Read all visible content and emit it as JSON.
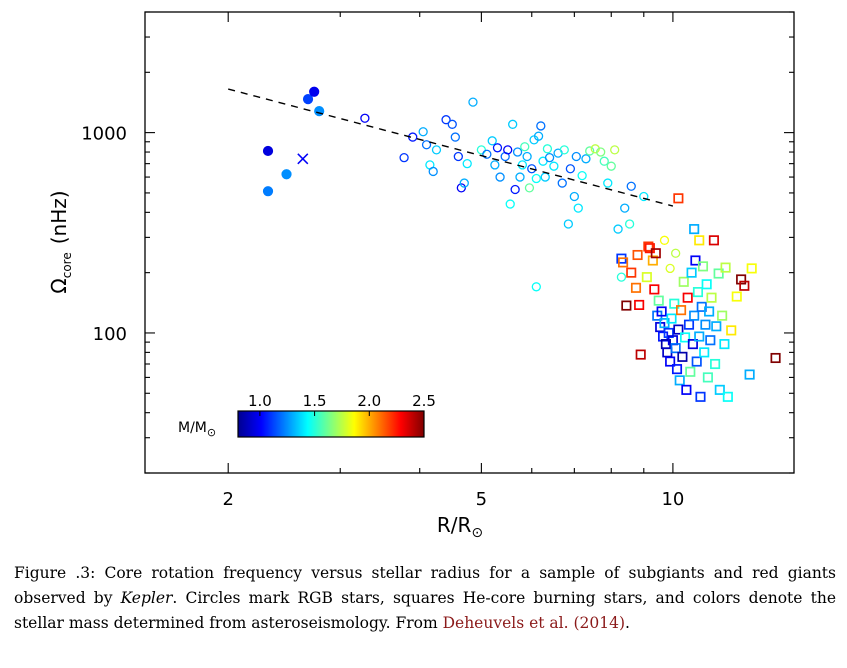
{
  "chart_data": {
    "type": "scatter",
    "title": "",
    "xlabel": "R/R",
    "xlabel_sub": "⊙",
    "ylabel": "Ω",
    "ylabel_sub": "core",
    "ylabel_unit": "(nHz)",
    "xscale": "log",
    "yscale": "log",
    "xlim": [
      1.48,
      15.5
    ],
    "ylim": [
      20,
      4000
    ],
    "xticks": [
      2,
      5,
      10
    ],
    "yticks": [
      100,
      1000
    ],
    "colorbar": {
      "label": "M/M",
      "label_sub": "⊙",
      "range": [
        0.8,
        2.5
      ],
      "ticks": [
        "1.0",
        "1.5",
        "2.0",
        "2.5"
      ],
      "tick_values": [
        1.0,
        1.5,
        2.0,
        2.5
      ],
      "placement": "bottom-left",
      "colormap": [
        "#00008f",
        "#0000ff",
        "#0080ff",
        "#00ffff",
        "#80ff80",
        "#ffff00",
        "#ff8000",
        "#ff0000",
        "#800000"
      ]
    },
    "trend_line": {
      "style": "dashed",
      "x": [
        2.0,
        10.0
      ],
      "y": [
        1650,
        430
      ]
    },
    "series": [
      {
        "marker": "filled-circle",
        "points": [
          {
            "x": 2.31,
            "y": 810,
            "m": 0.95
          },
          {
            "x": 2.31,
            "y": 510,
            "m": 1.22
          },
          {
            "x": 2.47,
            "y": 620,
            "m": 1.25
          },
          {
            "x": 2.67,
            "y": 1470,
            "m": 1.12
          },
          {
            "x": 2.73,
            "y": 1600,
            "m": 0.98
          },
          {
            "x": 2.78,
            "y": 1280,
            "m": 1.25
          }
        ]
      },
      {
        "marker": "cross",
        "points": [
          {
            "x": 2.62,
            "y": 740,
            "m": 1.0
          }
        ]
      },
      {
        "marker": "open-circle",
        "points": [
          {
            "x": 3.28,
            "y": 1180,
            "m": 1.0
          },
          {
            "x": 3.78,
            "y": 750,
            "m": 1.1
          },
          {
            "x": 3.9,
            "y": 950,
            "m": 1.05
          },
          {
            "x": 4.05,
            "y": 1010,
            "m": 1.3
          },
          {
            "x": 4.1,
            "y": 870,
            "m": 1.2
          },
          {
            "x": 4.15,
            "y": 690,
            "m": 1.4
          },
          {
            "x": 4.2,
            "y": 640,
            "m": 1.25
          },
          {
            "x": 4.25,
            "y": 820,
            "m": 1.35
          },
          {
            "x": 4.4,
            "y": 1160,
            "m": 1.1
          },
          {
            "x": 4.5,
            "y": 1100,
            "m": 1.15
          },
          {
            "x": 4.55,
            "y": 950,
            "m": 1.2
          },
          {
            "x": 4.6,
            "y": 760,
            "m": 1.1
          },
          {
            "x": 4.65,
            "y": 530,
            "m": 1.0
          },
          {
            "x": 4.7,
            "y": 560,
            "m": 1.3
          },
          {
            "x": 4.75,
            "y": 700,
            "m": 1.4
          },
          {
            "x": 4.85,
            "y": 1420,
            "m": 1.3
          },
          {
            "x": 5.0,
            "y": 820,
            "m": 1.5
          },
          {
            "x": 5.1,
            "y": 780,
            "m": 1.2
          },
          {
            "x": 5.2,
            "y": 910,
            "m": 1.35
          },
          {
            "x": 5.25,
            "y": 690,
            "m": 1.3
          },
          {
            "x": 5.3,
            "y": 840,
            "m": 1.05
          },
          {
            "x": 5.35,
            "y": 600,
            "m": 1.25
          },
          {
            "x": 5.45,
            "y": 760,
            "m": 1.2
          },
          {
            "x": 5.5,
            "y": 820,
            "m": 1.0
          },
          {
            "x": 5.55,
            "y": 440,
            "m": 1.45
          },
          {
            "x": 5.6,
            "y": 1100,
            "m": 1.35
          },
          {
            "x": 5.65,
            "y": 520,
            "m": 1.05
          },
          {
            "x": 5.7,
            "y": 800,
            "m": 1.25
          },
          {
            "x": 5.75,
            "y": 600,
            "m": 1.3
          },
          {
            "x": 5.8,
            "y": 690,
            "m": 1.4
          },
          {
            "x": 5.85,
            "y": 850,
            "m": 1.55
          },
          {
            "x": 5.9,
            "y": 760,
            "m": 1.3
          },
          {
            "x": 5.95,
            "y": 530,
            "m": 1.6
          },
          {
            "x": 6.0,
            "y": 660,
            "m": 1.15
          },
          {
            "x": 6.05,
            "y": 920,
            "m": 1.35
          },
          {
            "x": 6.1,
            "y": 590,
            "m": 1.45
          },
          {
            "x": 6.1,
            "y": 170,
            "m": 1.45
          },
          {
            "x": 6.15,
            "y": 960,
            "m": 1.3
          },
          {
            "x": 6.2,
            "y": 1080,
            "m": 1.2
          },
          {
            "x": 6.25,
            "y": 720,
            "m": 1.4
          },
          {
            "x": 6.3,
            "y": 600,
            "m": 1.35
          },
          {
            "x": 6.35,
            "y": 830,
            "m": 1.5
          },
          {
            "x": 6.4,
            "y": 750,
            "m": 1.25
          },
          {
            "x": 6.5,
            "y": 680,
            "m": 1.4
          },
          {
            "x": 6.6,
            "y": 790,
            "m": 1.3
          },
          {
            "x": 6.7,
            "y": 560,
            "m": 1.2
          },
          {
            "x": 6.75,
            "y": 820,
            "m": 1.5
          },
          {
            "x": 6.85,
            "y": 350,
            "m": 1.35
          },
          {
            "x": 6.9,
            "y": 660,
            "m": 1.15
          },
          {
            "x": 7.0,
            "y": 480,
            "m": 1.3
          },
          {
            "x": 7.05,
            "y": 760,
            "m": 1.25
          },
          {
            "x": 7.1,
            "y": 420,
            "m": 1.4
          },
          {
            "x": 7.2,
            "y": 610,
            "m": 1.45
          },
          {
            "x": 7.3,
            "y": 740,
            "m": 1.3
          },
          {
            "x": 7.4,
            "y": 810,
            "m": 1.6
          },
          {
            "x": 7.55,
            "y": 830,
            "m": 1.75
          },
          {
            "x": 7.7,
            "y": 800,
            "m": 1.65
          },
          {
            "x": 7.8,
            "y": 720,
            "m": 1.55
          },
          {
            "x": 7.9,
            "y": 560,
            "m": 1.4
          },
          {
            "x": 8.0,
            "y": 680,
            "m": 1.6
          },
          {
            "x": 8.1,
            "y": 820,
            "m": 1.75
          },
          {
            "x": 8.2,
            "y": 330,
            "m": 1.35
          },
          {
            "x": 8.3,
            "y": 190,
            "m": 1.5
          },
          {
            "x": 8.4,
            "y": 420,
            "m": 1.3
          },
          {
            "x": 8.55,
            "y": 350,
            "m": 1.5
          },
          {
            "x": 8.6,
            "y": 540,
            "m": 1.2
          },
          {
            "x": 9.0,
            "y": 480,
            "m": 1.4
          },
          {
            "x": 9.7,
            "y": 290,
            "m": 1.85
          },
          {
            "x": 9.9,
            "y": 210,
            "m": 1.8
          },
          {
            "x": 10.1,
            "y": 250,
            "m": 1.75
          }
        ]
      },
      {
        "marker": "open-square",
        "points": [
          {
            "x": 8.3,
            "y": 235,
            "m": 1.1
          },
          {
            "x": 8.35,
            "y": 225,
            "m": 2.1
          },
          {
            "x": 8.45,
            "y": 137,
            "m": 2.6
          },
          {
            "x": 8.6,
            "y": 200,
            "m": 2.2
          },
          {
            "x": 8.75,
            "y": 168,
            "m": 2.1
          },
          {
            "x": 8.8,
            "y": 245,
            "m": 2.15
          },
          {
            "x": 8.85,
            "y": 138,
            "m": 2.3
          },
          {
            "x": 8.9,
            "y": 78,
            "m": 2.4
          },
          {
            "x": 9.1,
            "y": 190,
            "m": 1.8
          },
          {
            "x": 9.15,
            "y": 270,
            "m": 2.2
          },
          {
            "x": 9.2,
            "y": 265,
            "m": 2.25
          },
          {
            "x": 9.3,
            "y": 230,
            "m": 2.0
          },
          {
            "x": 9.35,
            "y": 165,
            "m": 2.3
          },
          {
            "x": 9.4,
            "y": 250,
            "m": 2.45
          },
          {
            "x": 9.45,
            "y": 122,
            "m": 1.2
          },
          {
            "x": 9.5,
            "y": 145,
            "m": 1.6
          },
          {
            "x": 9.55,
            "y": 107,
            "m": 0.95
          },
          {
            "x": 9.6,
            "y": 128,
            "m": 1.0
          },
          {
            "x": 9.65,
            "y": 96,
            "m": 1.05
          },
          {
            "x": 9.7,
            "y": 112,
            "m": 1.3
          },
          {
            "x": 9.75,
            "y": 88,
            "m": 0.85
          },
          {
            "x": 9.8,
            "y": 80,
            "m": 0.9
          },
          {
            "x": 9.85,
            "y": 100,
            "m": 1.1
          },
          {
            "x": 9.9,
            "y": 72,
            "m": 1.0
          },
          {
            "x": 9.95,
            "y": 118,
            "m": 1.4
          },
          {
            "x": 10.0,
            "y": 92,
            "m": 0.95
          },
          {
            "x": 10.05,
            "y": 140,
            "m": 1.5
          },
          {
            "x": 10.1,
            "y": 84,
            "m": 1.2
          },
          {
            "x": 10.15,
            "y": 66,
            "m": 1.05
          },
          {
            "x": 10.2,
            "y": 470,
            "m": 2.2
          },
          {
            "x": 10.2,
            "y": 104,
            "m": 0.9
          },
          {
            "x": 10.25,
            "y": 58,
            "m": 1.3
          },
          {
            "x": 10.3,
            "y": 130,
            "m": 2.1
          },
          {
            "x": 10.35,
            "y": 76,
            "m": 0.85
          },
          {
            "x": 10.4,
            "y": 180,
            "m": 1.7
          },
          {
            "x": 10.45,
            "y": 95,
            "m": 1.45
          },
          {
            "x": 10.5,
            "y": 52,
            "m": 1.0
          },
          {
            "x": 10.55,
            "y": 150,
            "m": 2.3
          },
          {
            "x": 10.6,
            "y": 110,
            "m": 1.1
          },
          {
            "x": 10.65,
            "y": 64,
            "m": 1.6
          },
          {
            "x": 10.7,
            "y": 200,
            "m": 1.35
          },
          {
            "x": 10.75,
            "y": 88,
            "m": 0.95
          },
          {
            "x": 10.8,
            "y": 330,
            "m": 1.3
          },
          {
            "x": 10.8,
            "y": 122,
            "m": 1.25
          },
          {
            "x": 10.85,
            "y": 230,
            "m": 1.0
          },
          {
            "x": 10.9,
            "y": 72,
            "m": 1.15
          },
          {
            "x": 10.95,
            "y": 160,
            "m": 1.5
          },
          {
            "x": 11.0,
            "y": 290,
            "m": 1.9
          },
          {
            "x": 11.0,
            "y": 96,
            "m": 1.3
          },
          {
            "x": 11.05,
            "y": 48,
            "m": 1.1
          },
          {
            "x": 11.1,
            "y": 135,
            "m": 1.2
          },
          {
            "x": 11.15,
            "y": 215,
            "m": 1.65
          },
          {
            "x": 11.2,
            "y": 80,
            "m": 1.4
          },
          {
            "x": 11.25,
            "y": 110,
            "m": 1.25
          },
          {
            "x": 11.3,
            "y": 175,
            "m": 1.45
          },
          {
            "x": 11.35,
            "y": 60,
            "m": 1.55
          },
          {
            "x": 11.4,
            "y": 128,
            "m": 1.3
          },
          {
            "x": 11.45,
            "y": 92,
            "m": 1.2
          },
          {
            "x": 11.5,
            "y": 150,
            "m": 1.75
          },
          {
            "x": 11.6,
            "y": 290,
            "m": 2.35
          },
          {
            "x": 11.65,
            "y": 70,
            "m": 1.5
          },
          {
            "x": 11.7,
            "y": 108,
            "m": 1.3
          },
          {
            "x": 11.8,
            "y": 198,
            "m": 1.6
          },
          {
            "x": 11.85,
            "y": 52,
            "m": 1.35
          },
          {
            "x": 11.95,
            "y": 122,
            "m": 1.7
          },
          {
            "x": 12.05,
            "y": 88,
            "m": 1.4
          },
          {
            "x": 12.1,
            "y": 212,
            "m": 1.75
          },
          {
            "x": 12.2,
            "y": 48,
            "m": 1.45
          },
          {
            "x": 12.35,
            "y": 103,
            "m": 1.9
          },
          {
            "x": 12.6,
            "y": 152,
            "m": 1.85
          },
          {
            "x": 12.8,
            "y": 185,
            "m": 2.6
          },
          {
            "x": 12.95,
            "y": 172,
            "m": 2.4
          },
          {
            "x": 13.2,
            "y": 62,
            "m": 1.3
          },
          {
            "x": 13.3,
            "y": 210,
            "m": 1.85
          },
          {
            "x": 14.5,
            "y": 75,
            "m": 2.6
          }
        ]
      }
    ]
  },
  "caption": {
    "prefix": "Figure .3: Core rotation frequency versus stellar radius for a sample of subgiants and red giants observed by ",
    "italic": "Kepler",
    "middle": ". Circles mark RGB stars, squares He-core burning stars, and colors denote the stellar mass determined from asteroseismology. From ",
    "cite": "Deheuvels et al. (2014)",
    "suffix": "."
  }
}
